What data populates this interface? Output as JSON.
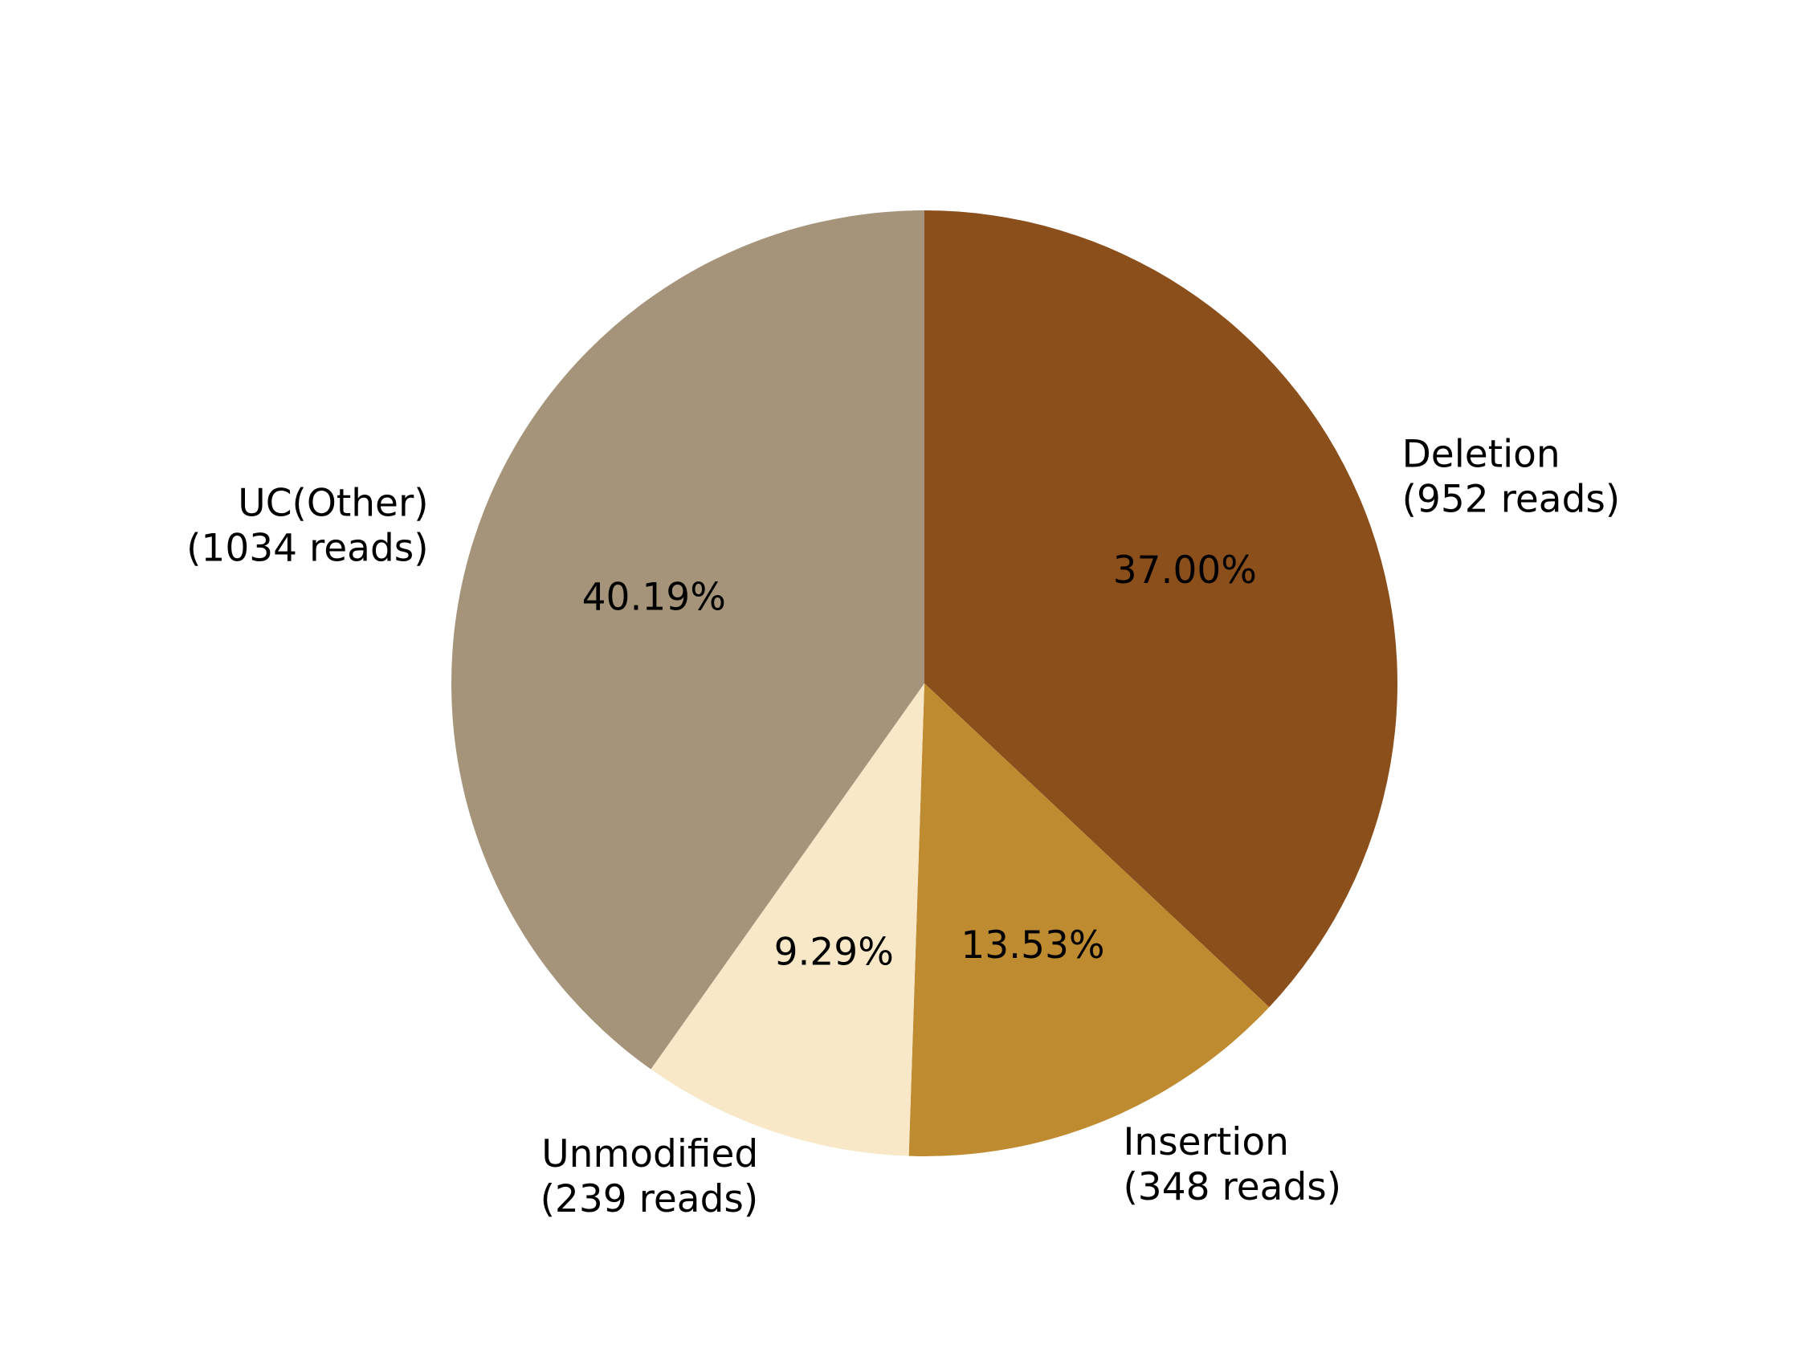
{
  "chart_data": {
    "type": "pie",
    "start_angle_deg": 90,
    "direction": "clockwise",
    "slices": [
      {
        "category": "Deletion",
        "reads_label": "(952 reads)",
        "reads": 952,
        "percent": 37.0,
        "percent_label": "37.00%",
        "color": "#8B4F1B"
      },
      {
        "category": "Insertion",
        "reads_label": "(348 reads)",
        "reads": 348,
        "percent": 13.53,
        "percent_label": "13.53%",
        "color": "#BE8B31"
      },
      {
        "category": "Unmodified",
        "reads_label": "(239 reads)",
        "reads": 239,
        "percent": 9.29,
        "percent_label": "9.29%",
        "color": "#F8E8C8"
      },
      {
        "category": "UC(Other)",
        "reads_label": "(1034 reads)",
        "reads": 1034,
        "percent": 40.19,
        "percent_label": "40.19%",
        "color": "#A5937A"
      }
    ]
  }
}
